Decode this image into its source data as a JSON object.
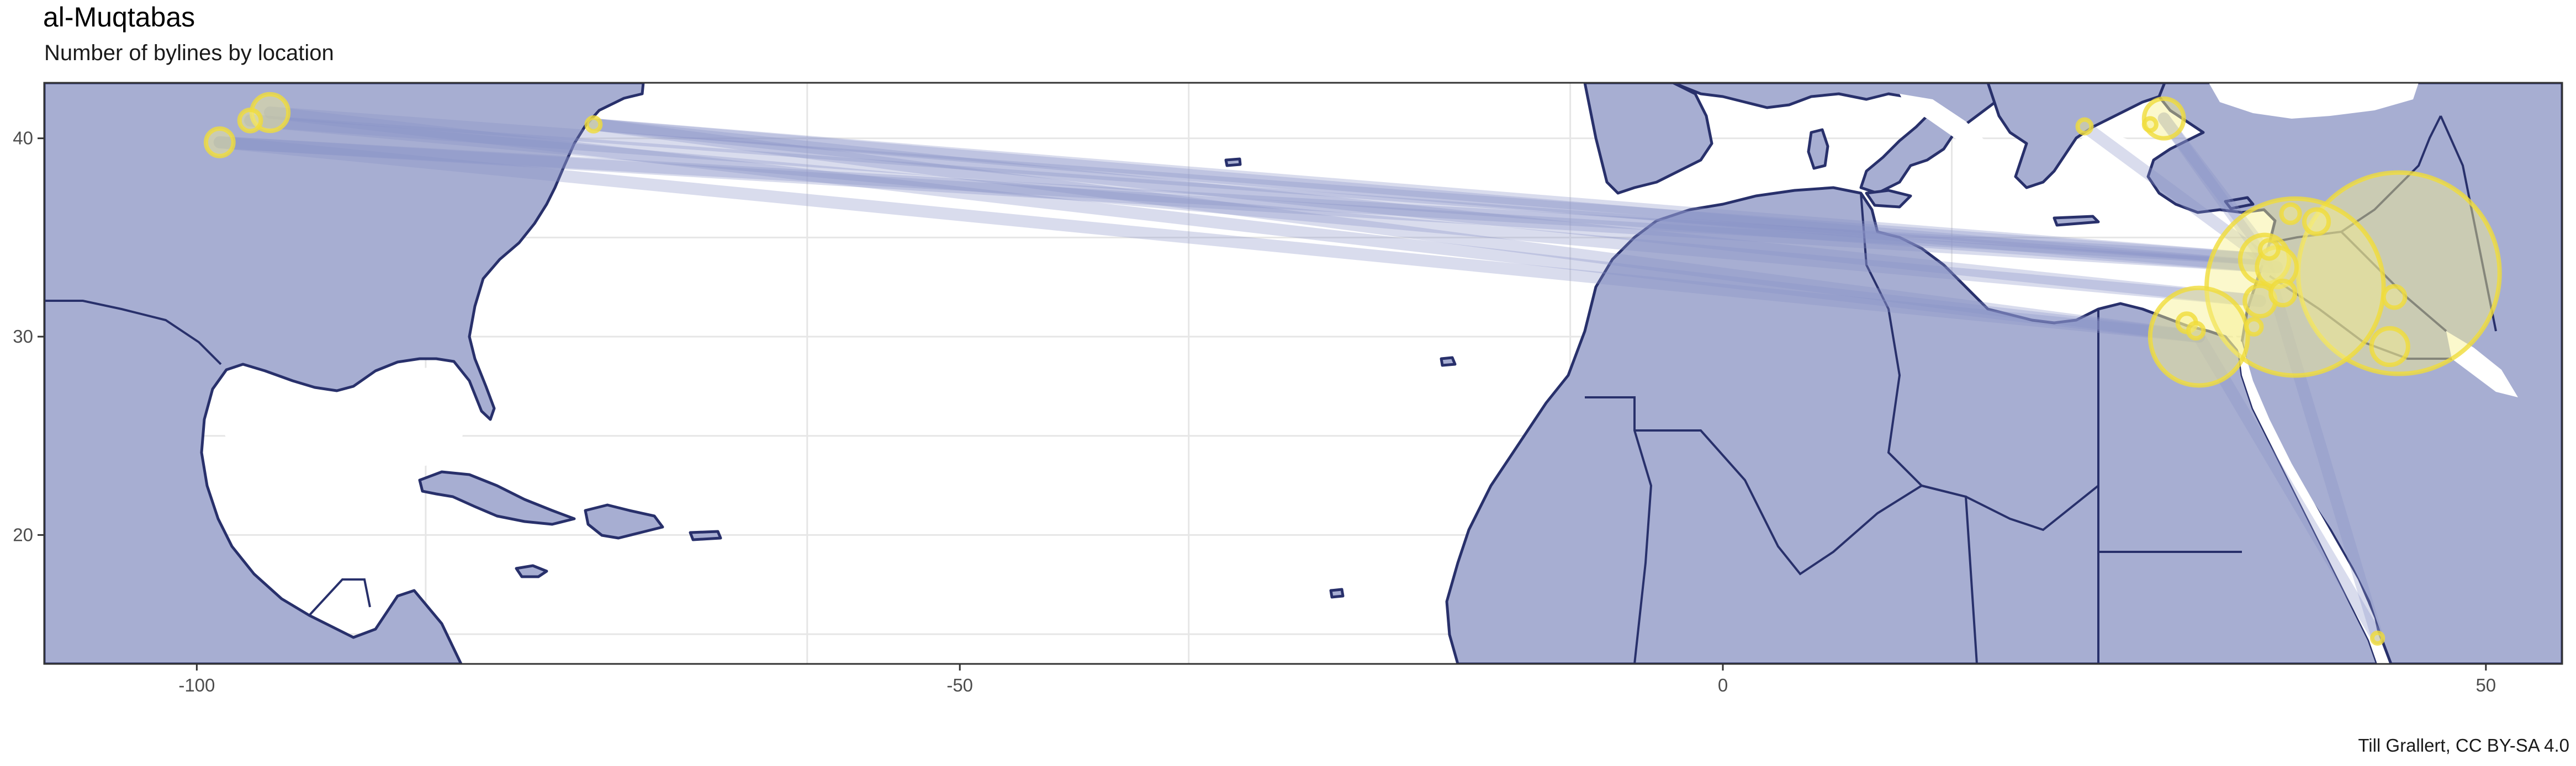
{
  "title": "al-Muqtabas",
  "subtitle": "Number of bylines by location",
  "caption": "Till Grallert, CC BY-SA 4.0",
  "colors": {
    "land": "#a7aed2",
    "border": "#28306b",
    "link": "#8992c8",
    "bubble_fill": "#f6f08f",
    "bubble_stroke": "#f0dc3a",
    "panel_border": "#333333",
    "grid": "#e6e6e6"
  },
  "chart_data": {
    "type": "map",
    "x_range": [
      -110,
      55
    ],
    "y_range": [
      13.5,
      42.8
    ],
    "x_ticks": [
      -100,
      -50,
      0,
      50
    ],
    "y_ticks": [
      20,
      30,
      40
    ],
    "grid": true,
    "places": [
      {
        "lon": -95.2,
        "lat": 41.3,
        "r": 1.2
      },
      {
        "lon": -96.5,
        "lat": 40.9,
        "r": 0.7
      },
      {
        "lon": -98.5,
        "lat": 39.8,
        "r": 0.9
      },
      {
        "lon": -74.0,
        "lat": 40.7,
        "r": 0.45
      },
      {
        "lon": 23.7,
        "lat": 40.6,
        "r": 0.45
      },
      {
        "lon": 28.9,
        "lat": 41.0,
        "r": 1.3
      },
      {
        "lon": 28.0,
        "lat": 40.7,
        "r": 0.4
      },
      {
        "lon": 37.5,
        "lat": 32.5,
        "r": 5.8
      },
      {
        "lon": 44.3,
        "lat": 33.2,
        "r": 6.6
      },
      {
        "lon": 31.2,
        "lat": 30.0,
        "r": 3.2
      },
      {
        "lon": 35.5,
        "lat": 33.9,
        "r": 1.6
      },
      {
        "lon": 36.3,
        "lat": 33.5,
        "r": 1.3
      },
      {
        "lon": 35.2,
        "lat": 31.8,
        "r": 1.0
      },
      {
        "lon": 36.7,
        "lat": 32.2,
        "r": 0.8
      },
      {
        "lon": 38.9,
        "lat": 35.8,
        "r": 0.8
      },
      {
        "lon": 37.2,
        "lat": 36.2,
        "r": 0.6
      },
      {
        "lon": 35.8,
        "lat": 34.4,
        "r": 0.6
      },
      {
        "lon": 43.7,
        "lat": 29.5,
        "r": 1.2
      },
      {
        "lon": 44.0,
        "lat": 32.0,
        "r": 0.7
      },
      {
        "lon": 30.4,
        "lat": 30.7,
        "r": 0.6
      },
      {
        "lon": 31.0,
        "lat": 30.3,
        "r": 0.5
      },
      {
        "lon": 42.9,
        "lat": 14.8,
        "r": 0.35
      },
      {
        "lon": 34.8,
        "lat": 30.5,
        "r": 0.5
      }
    ],
    "links": [
      {
        "from": [
          -95.2,
          41.3
        ],
        "to": [
          35.5,
          33.9
        ]
      },
      {
        "from": [
          -95.2,
          41.3
        ],
        "to": [
          31.2,
          30.0
        ]
      },
      {
        "from": [
          -98.5,
          39.8
        ],
        "to": [
          35.5,
          33.9
        ]
      },
      {
        "from": [
          -98.5,
          39.8
        ],
        "to": [
          36.3,
          33.5
        ]
      },
      {
        "from": [
          -98.5,
          39.8
        ],
        "to": [
          31.2,
          30.0
        ]
      },
      {
        "from": [
          -96.5,
          40.9
        ],
        "to": [
          36.3,
          33.5
        ]
      },
      {
        "from": [
          -96.5,
          40.9
        ],
        "to": [
          35.2,
          31.8
        ]
      },
      {
        "from": [
          -74.0,
          40.7
        ],
        "to": [
          35.5,
          33.9
        ]
      },
      {
        "from": [
          -74.0,
          40.7
        ],
        "to": [
          36.3,
          33.5
        ]
      },
      {
        "from": [
          -74.0,
          40.7
        ],
        "to": [
          31.2,
          30.0
        ]
      },
      {
        "from": [
          -74.0,
          40.7
        ],
        "to": [
          35.2,
          31.8
        ]
      },
      {
        "from": [
          28.9,
          41.0
        ],
        "to": [
          35.5,
          33.9
        ]
      },
      {
        "from": [
          28.9,
          41.0
        ],
        "to": [
          36.3,
          33.5
        ]
      },
      {
        "from": [
          23.7,
          40.6
        ],
        "to": [
          35.5,
          33.9
        ]
      },
      {
        "from": [
          31.2,
          30.0
        ],
        "to": [
          42.9,
          14.8
        ]
      },
      {
        "from": [
          35.5,
          33.9
        ],
        "to": [
          42.9,
          14.8
        ]
      }
    ]
  }
}
